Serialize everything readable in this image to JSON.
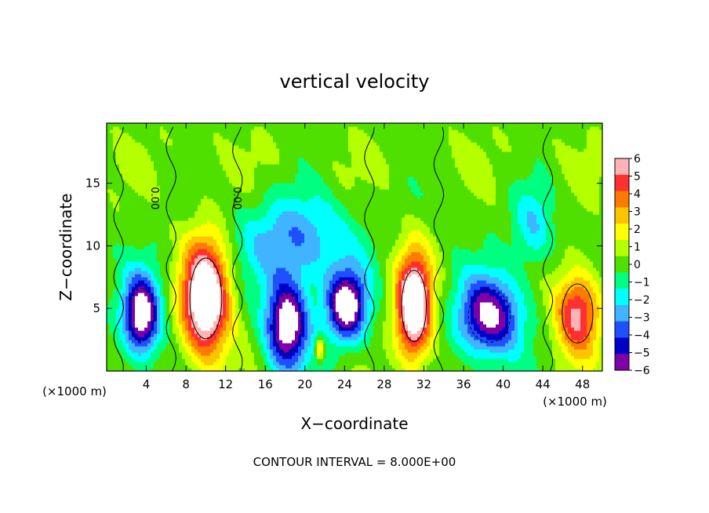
{
  "chart_data": {
    "type": "heatmap",
    "title": "vertical velocity",
    "xlabel": "X−coordinate",
    "ylabel": "Z−coordinate",
    "x_units_left": "(×1000 m)",
    "x_units_right": "(×1000 m)",
    "footnote": "CONTOUR INTERVAL = 8.000E+00",
    "xlim": [
      0,
      50
    ],
    "ylim": [
      0,
      19.8
    ],
    "x_ticks": [
      4,
      8,
      12,
      16,
      20,
      24,
      28,
      32,
      36,
      40,
      44,
      48
    ],
    "y_ticks": [
      5,
      10,
      15
    ],
    "contour_labels": [
      {
        "x": 4.5,
        "y": 13.8,
        "text": "0.00"
      },
      {
        "x": 12.8,
        "y": 13.8,
        "text": "0.00"
      }
    ],
    "colorbar": {
      "ticks": [
        6,
        5,
        4,
        3,
        2,
        1,
        0,
        -1,
        -2,
        -3,
        -4,
        -5,
        -6
      ],
      "tick_labels": [
        "6",
        "5",
        "4",
        "3",
        "2",
        "1",
        "0",
        "−1",
        "−2",
        "−3",
        "−4",
        "−5",
        "−6"
      ],
      "colors": [
        "#ffb3b3",
        "#ff3030",
        "#ff7a00",
        "#ffc400",
        "#ffff00",
        "#b4ff00",
        "#50e000",
        "#00ff80",
        "#00ffff",
        "#40b4ff",
        "#1e50ff",
        "#0000c8",
        "#8000a8"
      ]
    },
    "features": [
      {
        "kind": "updraft",
        "x": 10,
        "z": 5.8,
        "rx": 2.6,
        "rz": 5.2,
        "peak": 9
      },
      {
        "kind": "updraft",
        "x": 31,
        "z": 5.2,
        "rx": 2.0,
        "rz": 4.6,
        "peak": 9
      },
      {
        "kind": "updraft",
        "x": 47.5,
        "z": 4.6,
        "rx": 2.5,
        "rz": 3.8,
        "peak": 6
      },
      {
        "kind": "updraft",
        "x": 21.5,
        "z": 1.8,
        "rx": 0.5,
        "rz": 0.9,
        "peak": 4
      },
      {
        "kind": "downdraft",
        "x": 3.5,
        "z": 4.5,
        "rx": 2.0,
        "rz": 3.4,
        "peak": -8
      },
      {
        "kind": "downdraft",
        "x": 18.2,
        "z": 3.8,
        "rx": 2.3,
        "rz": 3.8,
        "peak": -8
      },
      {
        "kind": "downdraft",
        "x": 24.2,
        "z": 5.2,
        "rx": 2.2,
        "rz": 3.0,
        "peak": -8
      },
      {
        "kind": "downdraft",
        "x": 38.6,
        "z": 4.4,
        "rx": 3.4,
        "rz": 3.4,
        "peak": -7
      },
      {
        "kind": "weak_downdraft",
        "x": 19,
        "z": 10.5,
        "rx": 6,
        "rz": 3.8,
        "peak": -3.5
      },
      {
        "kind": "weak_downdraft",
        "x": 43,
        "z": 11.5,
        "rx": 2.2,
        "rz": 3.5,
        "peak": -2.5
      }
    ]
  }
}
